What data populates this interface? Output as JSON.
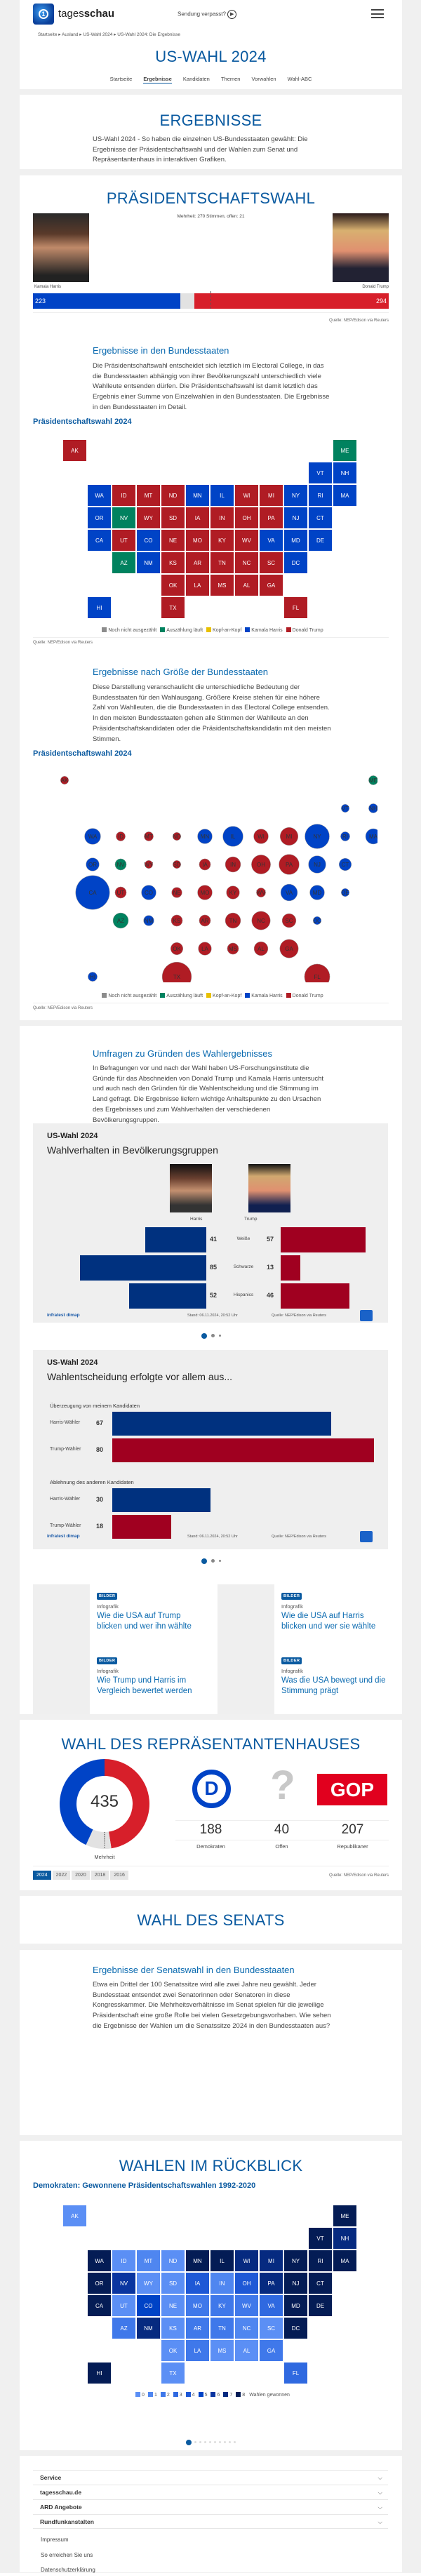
{
  "header": {
    "brand": "tagesschau",
    "brand_bold": "schau",
    "brand_light": "tages",
    "missed_label": "Sendung verpasst?",
    "icons": [
      "tagesschau-logo-icon",
      "play-icon",
      "menu-icon"
    ]
  },
  "breadcrumb": [
    "Startseite",
    "Ausland",
    "US-Wahl 2024",
    "US-Wahl 2024: Die Ergebnisse"
  ],
  "hero": {
    "title": "US-WAHL 2024",
    "nav": [
      "Startseite",
      "Ergebnisse",
      "Kandidaten",
      "Themen",
      "Vorwahlen",
      "Wahl-ABC"
    ],
    "active_nav": "Ergebnisse"
  },
  "intro": {
    "title": "ERGEBNISSE",
    "text": "US-Wahl 2024 - So haben die einzelnen US-Bundesstaaten gewählt: Die Ergebnisse der Präsidentschaftswahl und der Wahlen zum Senat und Repräsentantenhaus in interaktiven Grafiken."
  },
  "president": {
    "title": "PRÄSIDENTSCHAFTSWAHL",
    "majority_note": "Mehrheit: 270 Stimmen, offen: 21",
    "harris_name": "Kamala Harris",
    "trump_name": "Donald Trump",
    "harris_votes": "223",
    "trump_votes": "294",
    "open": 21,
    "total": 538,
    "majority": 270,
    "source": "Quelle: NEP/Edison via Reuters",
    "colors": {
      "harris": "#0043c6",
      "trump": "#d71f2a",
      "open": "#e2e2e2"
    }
  },
  "states_section": {
    "title": "Ergebnisse in den Bundesstaaten",
    "text": "Die Präsidentschaftswahl entscheidet sich letztlich im Electoral College, in das die Bundesstaaten abhängig von ihrer Bevölkerungszahl unterschiedlich viele Wahlleute entsenden dürfen. Die Präsidentschaftswahl ist damit letztlich das Ergebnis einer Summe von Einzelwahlen in den Bundesstaaten. Die Ergebnisse in den Bundesstaaten im Detail."
  },
  "map_legend": [
    {
      "label": "Noch nicht ausgezählt",
      "color": "#8c8c8c"
    },
    {
      "label": "Auszählung läuft",
      "color": "#00825f"
    },
    {
      "label": "Kopf-an-Kopf",
      "color": "#e8c000"
    },
    {
      "label": "Kamala Harris",
      "color": "#0043c6"
    },
    {
      "label": "Donald Trump",
      "color": "#b01c24"
    }
  ],
  "map_source": "Quelle: NEP/Edison via Reuters",
  "size_section": {
    "title": "Ergebnisse nach Größe der Bundesstaaten",
    "text": "Diese Darstellung veranschaulicht die unterschiedliche Bedeutung der Bundesstaaten für den Wahlausgang. Größere Kreise stehen für eine höhere Zahl von Wahlleuten, die die Bundesstaaten in das Electoral College entsenden. In den meisten Bundesstaaten gehen alle Stimmen der Wahlleute an den Präsidentschaftskandidaten oder die Präsidentschaftskandidatin mit den meisten Stimmen."
  },
  "chart_data": [
    {
      "type": "map",
      "title": "Präsidentschaftswahl 2024",
      "status": {
        "harris": [
          "WA",
          "OR",
          "CA",
          "CO",
          "NM",
          "MN",
          "IL",
          "NY",
          "VT",
          "NH",
          "MA",
          "CT",
          "RI",
          "NJ",
          "DE",
          "MD",
          "VA",
          "DC",
          "HI"
        ],
        "counting": [
          "NV",
          "AZ",
          "ME"
        ],
        "trump": [
          "AK",
          "ID",
          "MT",
          "ND",
          "SD",
          "WY",
          "UT",
          "NE",
          "KS",
          "OK",
          "TX",
          "IA",
          "MO",
          "AR",
          "LA",
          "WI",
          "MI",
          "IN",
          "OH",
          "KY",
          "TN",
          "MS",
          "AL",
          "GA",
          "FL",
          "SC",
          "NC",
          "WV",
          "PA"
        ]
      }
    },
    {
      "type": "bubble-map",
      "title": "Präsidentschaftswahl 2024",
      "electoral_votes": {
        "CA": 54,
        "TX": 40,
        "FL": 30,
        "NY": 28,
        "PA": 19,
        "IL": 19,
        "OH": 17,
        "GA": 16,
        "NC": 16,
        "MI": 15,
        "NJ": 14,
        "VA": 13,
        "WA": 12,
        "AZ": 11,
        "TN": 11,
        "MA": 11,
        "IN": 11,
        "MN": 10,
        "MO": 10,
        "WI": 10,
        "MD": 10,
        "CO": 10,
        "SC": 9,
        "AL": 9,
        "LA": 8,
        "KY": 8,
        "OR": 8,
        "OK": 7,
        "CT": 7,
        "UT": 6,
        "NV": 6,
        "IA": 6,
        "AR": 6,
        "KS": 6,
        "MS": 6,
        "NM": 5,
        "NE": 5,
        "ID": 4,
        "WV": 4,
        "HI": 4,
        "NH": 4,
        "ME": 4,
        "MT": 4,
        "RI": 4,
        "DE": 3,
        "SD": 3,
        "ND": 3,
        "AK": 3,
        "VT": 3,
        "WY": 3,
        "DC": 3
      }
    },
    {
      "type": "bar",
      "title": "US-Wahl 2024",
      "subtitle": "Wahlverhalten in Bevölkerungsgruppen",
      "series_labels": [
        "Harris",
        "Trump"
      ],
      "categories": [
        "Weiße",
        "Schwarze",
        "Hispanics"
      ],
      "series": [
        {
          "name": "Harris",
          "values": [
            41,
            85,
            52
          ]
        },
        {
          "name": "Trump",
          "values": [
            57,
            13,
            46
          ]
        }
      ],
      "brand": "infratest dimap",
      "stand": "Stand:  06.11.2024, 20:52 Uhr",
      "source": "Quelle: NEP/Edison via Reuters"
    },
    {
      "type": "bar",
      "title": "US-Wahl 2024",
      "subtitle": "Wahlentscheidung erfolgte vor allem aus...",
      "groups": [
        {
          "label": "Überzeugung von meinem Kandidaten",
          "rows": [
            {
              "label": "Harris-Wähler",
              "value": 67
            },
            {
              "label": "Trump-Wähler",
              "value": 80
            }
          ]
        },
        {
          "label": "Ablehnung des anderen Kandidaten",
          "rows": [
            {
              "label": "Harris-Wähler",
              "value": 30
            },
            {
              "label": "Trump-Wähler",
              "value": 18
            }
          ]
        }
      ],
      "brand": "infratest dimap",
      "stand": "Stand:  06.11.2024, 20:52 Uhr",
      "source": "Quelle: NEP/Edison via Reuters"
    },
    {
      "type": "pie",
      "title": "WAHL DES REPRÄSENTANTENHAUSES",
      "center_label": "435",
      "majority_label": "Mehrheit",
      "slices": [
        {
          "label": "Republikaner",
          "value": 207,
          "color": "#d71f2a"
        },
        {
          "label": "Offen",
          "value": 40,
          "color": "#e2e2e2"
        },
        {
          "label": "Demokraten",
          "value": 188,
          "color": "#0043c6"
        }
      ]
    },
    {
      "type": "map",
      "title": "Demokraten: Gewonnene Präsidentschaftswahlen 1992-2020",
      "legend_suffix": "Wahlen gewonnen",
      "scale": [
        "0",
        "1",
        "2",
        "3",
        "4",
        "5",
        "6",
        "7",
        "8"
      ],
      "scale_colors": [
        "#5b8ff5",
        "#4f86f0",
        "#3f78ea",
        "#2f69e0",
        "#1e58d6",
        "#0043c6",
        "#0a35a0",
        "#062a80",
        "#041c55"
      ],
      "wins": {
        "WA": 8,
        "OR": 8,
        "CA": 8,
        "NV": 6,
        "CO": 5,
        "NM": 7,
        "MN": 8,
        "WI": 7,
        "MI": 7,
        "IA": 4,
        "IL": 8,
        "PA": 7,
        "NY": 8,
        "VT": 8,
        "NH": 7,
        "ME": 8,
        "MA": 8,
        "RI": 8,
        "CT": 8,
        "NJ": 8,
        "DE": 8,
        "MD": 8,
        "DC": 8,
        "HI": 8,
        "VA": 3,
        "OH": 4,
        "FL": 3,
        "NC": 1,
        "GA": 2,
        "AZ": 2,
        "MO": 2,
        "AR": 2,
        "LA": 2,
        "TN": 2,
        "KY": 2,
        "WV": 2,
        "MT": 1,
        "IN": 1,
        "ID": 0,
        "UT": 0,
        "WY": 0,
        "ND": 0,
        "SD": 0,
        "NE": 0,
        "KS": 0,
        "OK": 0,
        "TX": 0,
        "AK": 0,
        "AL": 0,
        "MS": 0,
        "SC": 0
      }
    }
  ],
  "polls": {
    "title": "Umfragen zu Gründen des Wahlergebnisses",
    "text": "In Befragungen vor und nach der Wahl haben US-Forschungsinstitute die Gründe für das Abschneiden von Donald Trump und Kamala Harris untersucht und auch nach den Gründen für die Wahlentscheidung und die Stimmung im Land gefragt. Die Ergebnisse liefern wichtige Anhaltspunkte zu den Ursachen des Ergebnisses und zum Wahlverhalten der verschiedenen Bevölkerungsgruppen."
  },
  "teasers": [
    {
      "badge": "BILDER",
      "kicker": "Infografik",
      "title": "Wie die USA auf Trump blicken und wer ihn wählte"
    },
    {
      "badge": "BILDER",
      "kicker": "Infografik",
      "title": "Wie die USA auf Harris blicken und wer sie wählte"
    },
    {
      "badge": "BILDER",
      "kicker": "Infografik",
      "title": "Wie Trump und Harris im Vergleich bewertet werden"
    },
    {
      "badge": "BILDER",
      "kicker": "Infografik",
      "title": "Was die USA bewegt und die Stimmung prägt"
    }
  ],
  "house": {
    "title": "WAHL DES REPRÄSENTANTENHAUSES",
    "dem": "188",
    "dem_label": "Demokraten",
    "open": "40",
    "open_label": "Offen",
    "rep": "207",
    "rep_label": "Republikaner",
    "gop": "GOP",
    "years": [
      "2024",
      "2022",
      "2020",
      "2018",
      "2016"
    ],
    "active_year": "2024",
    "source": "Quelle: NEP/Edison via Reuters"
  },
  "senate": {
    "title": "WAHL DES SENATS",
    "subtitle": "Ergebnisse der Senatswahl in den Bundesstaaten",
    "text": "Etwa ein Drittel der 100 Senatssitze wird alle zwei Jahre neu gewählt. Jeder Bundesstaat entsendet zwei Senatorinnen oder Senatoren in diese Kongresskammer. Die Mehrheitsverhältnisse im Senat spielen für die jeweilige Präsidentschaft eine große Rolle bei vielen Gesetzgebungsvorhaben. Wie sehen die Ergebnisse der Wahlen um die Senatssitze 2024 in den Bundesstaaten aus?"
  },
  "history": {
    "title": "WAHLEN IM RÜCKBLICK"
  },
  "footer": {
    "sections": [
      "Service",
      "tagesschau.de",
      "ARD Angebote",
      "Rundfunkanstalten"
    ],
    "links": [
      "Impressum",
      "So erreichen Sie uns",
      "Datenschutzerklärung"
    ]
  }
}
